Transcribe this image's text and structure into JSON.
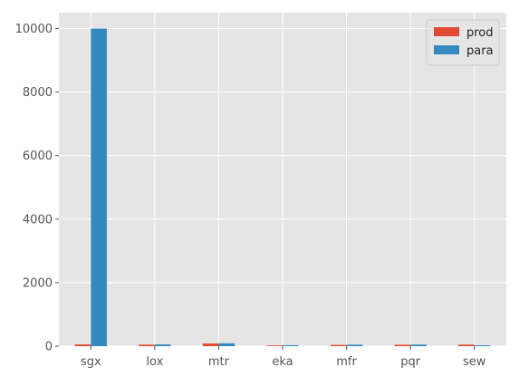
{
  "chart_data": {
    "type": "bar",
    "title": "",
    "xlabel": "",
    "ylabel": "",
    "categories": [
      "sgx",
      "lox",
      "mtr",
      "eka",
      "mfr",
      "pqr",
      "sew"
    ],
    "series": [
      {
        "name": "prod",
        "color": "#E24A33",
        "values": [
          55,
          48,
          85,
          22,
          40,
          45,
          50
        ]
      },
      {
        "name": "para",
        "color": "#348ABD",
        "values": [
          10000,
          55,
          90,
          30,
          48,
          50,
          28
        ]
      }
    ],
    "ylim": [
      0,
      10500
    ],
    "yticks": [
      0,
      2000,
      4000,
      6000,
      8000,
      10000
    ],
    "grid": true,
    "legend_position": "top-right",
    "style": "ggplot",
    "background_color": "#E5E5E5"
  }
}
